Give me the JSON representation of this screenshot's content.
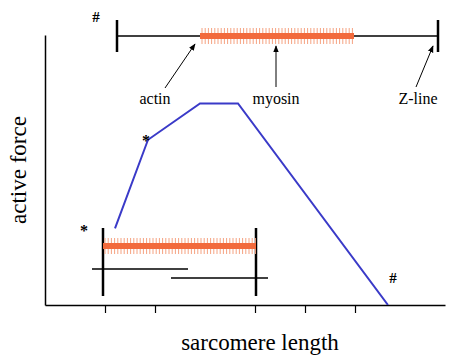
{
  "chart_data": {
    "type": "line",
    "x_label": "sarcomere length",
    "y_label": "active force",
    "x": [
      1.2,
      1.86,
      2.9,
      3.66,
      6.66
    ],
    "values": [
      0.38,
      0.82,
      1.0,
      1.0,
      0.0
    ],
    "color": "#3a3ac8",
    "xlim": [
      -0.2,
      7.8
    ],
    "ylim": [
      0,
      1.34
    ],
    "xticks": [
      1,
      2,
      4,
      5,
      6
    ],
    "yticks": [],
    "tick_labels": false,
    "grid": false,
    "annotations": [
      "#",
      "actin",
      "myosin",
      "Z-line",
      "*",
      "*",
      "#"
    ]
  }
}
